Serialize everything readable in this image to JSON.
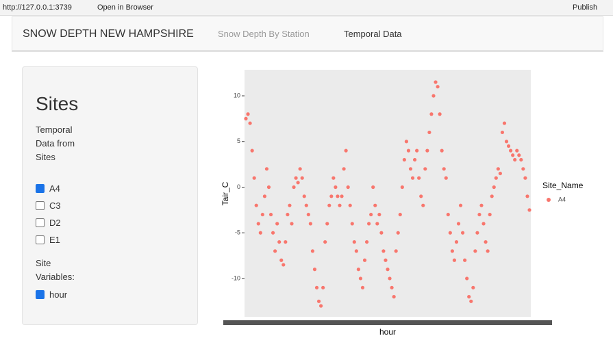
{
  "browser_bar": {
    "url": "http://127.0.0.1:3739",
    "open_button": "Open in Browser",
    "publish_button": "Publish"
  },
  "navbar": {
    "brand": "SNOW DEPTH NEW HAMPSHIRE",
    "tabs": [
      "Snow Depth By Station",
      "Temporal Data"
    ]
  },
  "sidebar": {
    "title": "Sites",
    "sites_label": "Temporal Data from Sites",
    "sites": [
      {
        "label": "A4",
        "checked": true
      },
      {
        "label": "C3",
        "checked": false
      },
      {
        "label": "D2",
        "checked": false
      },
      {
        "label": "E1",
        "checked": false
      }
    ],
    "variables_label": "Site Variables:",
    "variables": [
      {
        "label": "hour",
        "checked": true
      }
    ]
  },
  "chart_data": {
    "type": "scatter",
    "x_label": "hour",
    "y_label": "Tair_C",
    "legend_title": "Site_Name",
    "series": [
      {
        "name": "A4",
        "color": "#f8766d",
        "values": [
          7.5,
          8,
          7,
          4,
          1,
          -2,
          -4,
          -5,
          -3,
          -1,
          2,
          0,
          -3,
          -5,
          -7,
          -4,
          -6,
          -8,
          -8.5,
          -6,
          -3,
          -2,
          -4,
          0,
          1,
          0.5,
          2,
          1,
          -1,
          -2,
          -3,
          -4,
          -7,
          -9,
          -11,
          -12.5,
          -13,
          -11,
          -6,
          -4,
          -2,
          -1,
          1,
          0,
          -1,
          -2,
          -1,
          2,
          4,
          0,
          -2,
          -4,
          -6,
          -7,
          -9,
          -10,
          -11,
          -8,
          -6,
          -4,
          -3,
          0,
          -2,
          -4,
          -3,
          -5,
          -7,
          -8,
          -9,
          -10,
          -11,
          -12,
          -7,
          -5,
          -3,
          0,
          3,
          5,
          4,
          2,
          1,
          3,
          4,
          1,
          -1,
          -2,
          2,
          4,
          6,
          8,
          10,
          11.5,
          11,
          8,
          4,
          2,
          1,
          -3,
          -5,
          -7,
          -8,
          -6,
          -4,
          -2,
          -5,
          -8,
          -10,
          -12,
          -12.5,
          -11,
          -7,
          -5,
          -3,
          -2,
          -4,
          -6,
          -7,
          -3,
          -1,
          0,
          1,
          2,
          1.5,
          6,
          7,
          5,
          4.5,
          4,
          3.5,
          3,
          4,
          3.5,
          3,
          2,
          1,
          -1,
          -2.5
        ]
      }
    ],
    "ylim": [
      -14.2,
      12.85
    ],
    "yticks": [
      -10,
      -5,
      0,
      5,
      10
    ],
    "grid": false
  }
}
